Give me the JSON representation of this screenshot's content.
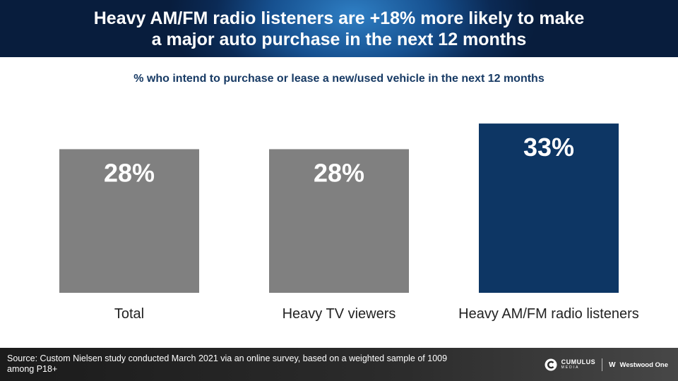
{
  "header": {
    "title_line1": "Heavy AM/FM radio listeners are +18% more likely to make",
    "title_line2": "a major auto purchase in the next 12 months"
  },
  "chart_data": {
    "type": "bar",
    "title": "Heavy AM/FM radio listeners are +18% more likely to make a major auto purchase in the next 12 months",
    "subtitle": "% who intend to purchase or lease a new/used vehicle in the next 12 months",
    "categories": [
      "Total",
      "Heavy TV viewers",
      "Heavy AM/FM radio listeners"
    ],
    "values": [
      28,
      28,
      33
    ],
    "value_labels": [
      "28%",
      "28%",
      "33%"
    ],
    "colors": [
      "#808080",
      "#808080",
      "#0d3664"
    ],
    "label_color": "#ffffff",
    "ylim": [
      0,
      40
    ],
    "grid": false,
    "legend": "none"
  },
  "footer": {
    "source": "Source: Custom Nielsen study conducted March 2021 via an online survey, based on a weighted sample of 1009 among P18+",
    "logo_cumulus": "CUMULUS",
    "logo_cumulus_sub": "MEDIA",
    "logo_westwood": "Westwood One",
    "logo_westwood_mark": "W"
  }
}
